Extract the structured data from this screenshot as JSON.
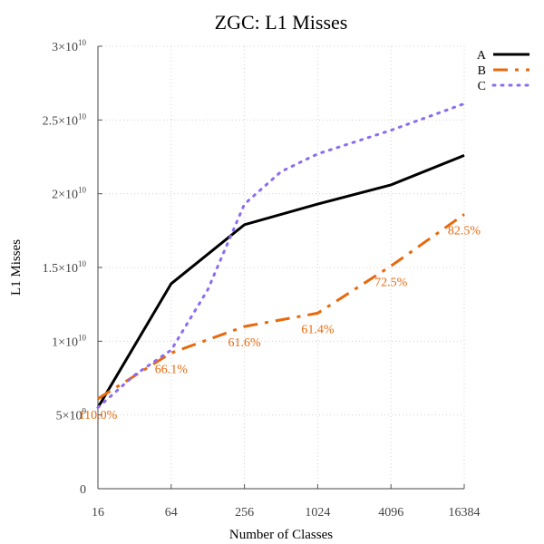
{
  "chart_data": {
    "type": "line",
    "title": "ZGC: L1 Misses",
    "xlabel": "Number of Classes",
    "ylabel": "L1 Misses",
    "x_scale": "log2",
    "categories": [
      "16",
      "64",
      "256",
      "1024",
      "4096",
      "16384"
    ],
    "x": [
      16,
      64,
      256,
      1024,
      4096,
      16384
    ],
    "y_ticks": [
      {
        "value": 0,
        "mantissa": "0",
        "exponent": ""
      },
      {
        "value": 5000000000,
        "mantissa": "5×10",
        "exponent": "9"
      },
      {
        "value": 10000000000,
        "mantissa": "1×10",
        "exponent": "10"
      },
      {
        "value": 15000000000,
        "mantissa": "1.5×10",
        "exponent": "10"
      },
      {
        "value": 20000000000,
        "mantissa": "2×10",
        "exponent": "10"
      },
      {
        "value": 25000000000,
        "mantissa": "2.5×10",
        "exponent": "10"
      },
      {
        "value": 30000000000,
        "mantissa": "3×10",
        "exponent": "10"
      }
    ],
    "ylim": [
      0,
      30000000000
    ],
    "grid": true,
    "legend_position": "top-right",
    "series": [
      {
        "name": "A",
        "color": "#000000",
        "style": "solid",
        "x": [
          16,
          64,
          256,
          1024,
          4096,
          16384
        ],
        "values": [
          5500000000,
          13900000000,
          17900000000,
          19300000000,
          20600000000,
          22600000000
        ]
      },
      {
        "name": "B",
        "color": "#e8690c",
        "style": "dashed",
        "x": [
          16,
          64,
          256,
          1024,
          4096,
          16384
        ],
        "values": [
          6100000000,
          9200000000,
          11000000000,
          11900000000,
          15100000000,
          18600000000
        ],
        "labels": [
          "110.0%",
          "66.1%",
          "61.6%",
          "61.4%",
          "72.5%",
          "82.5%"
        ]
      },
      {
        "name": "C",
        "color": "#8c6cf0",
        "style": "dotted",
        "x": [
          16,
          32,
          64,
          128,
          256,
          512,
          1024,
          4096,
          16384
        ],
        "values": [
          5500000000,
          7700000000,
          9400000000,
          13500000000,
          19300000000,
          21500000000,
          22700000000,
          24300000000,
          26100000000
        ]
      }
    ]
  }
}
